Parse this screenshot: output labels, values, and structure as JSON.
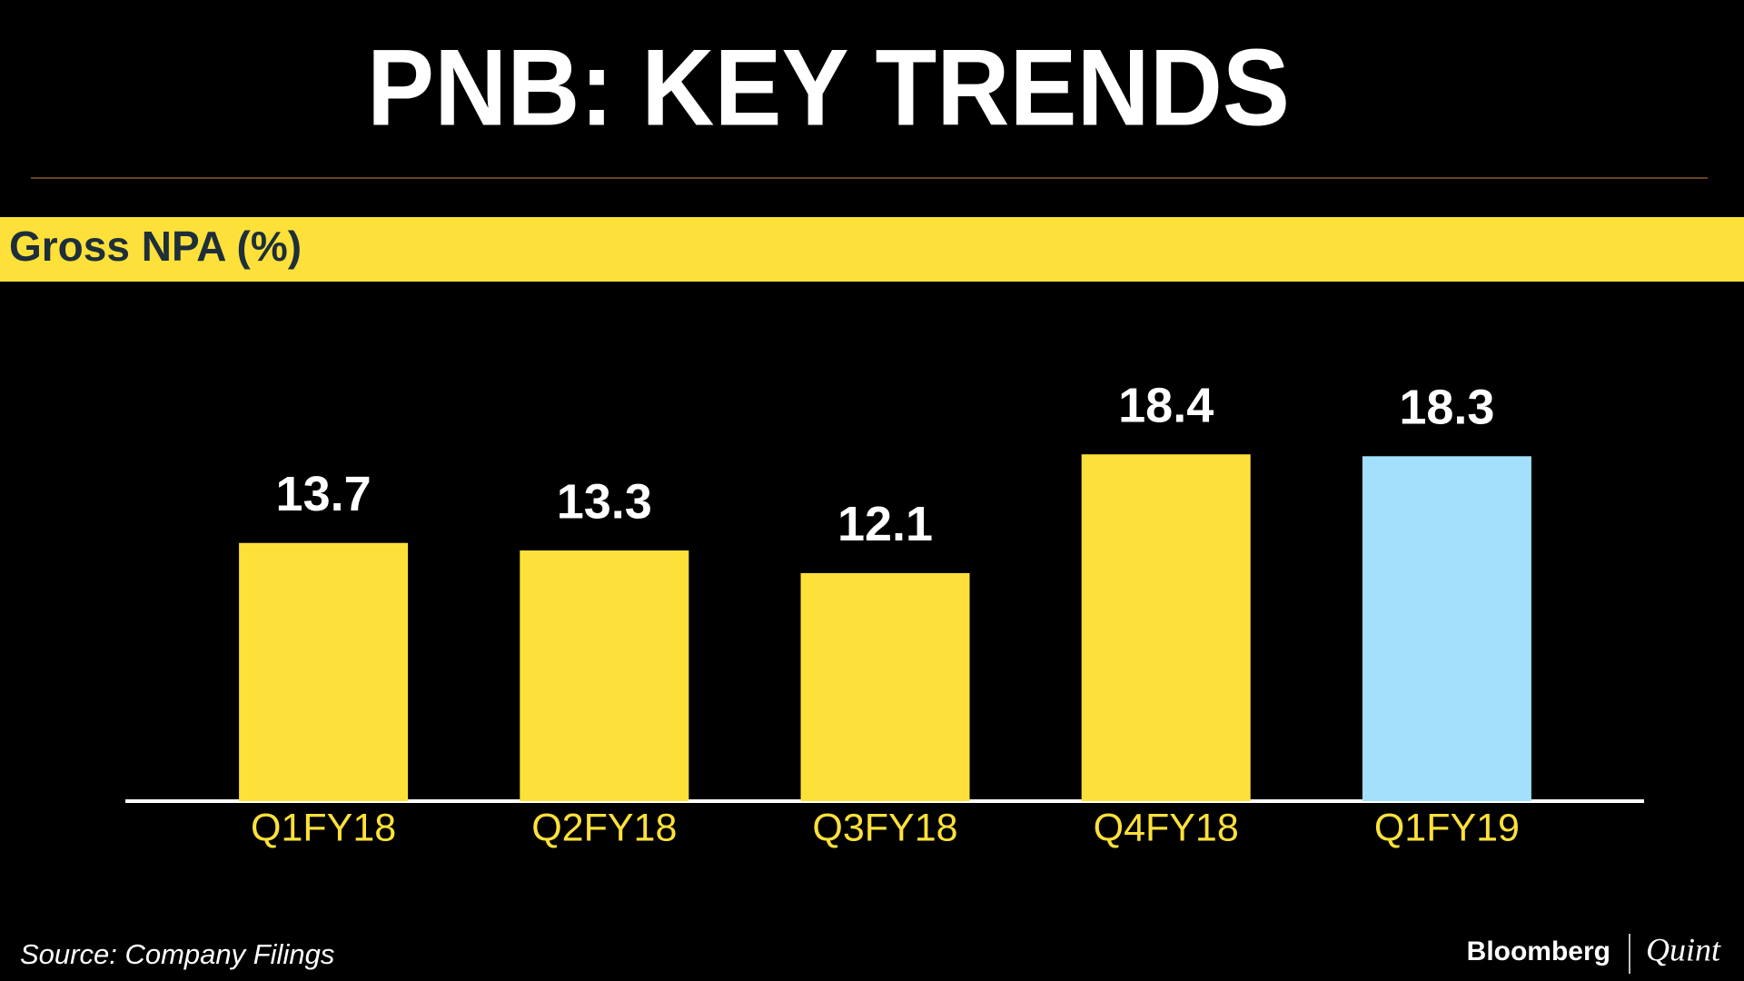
{
  "chart_data": {
    "type": "bar",
    "title": "PNB: KEY TRENDS",
    "subtitle": "Gross NPA (%)",
    "categories": [
      "Q1FY18",
      "Q2FY18",
      "Q3FY18",
      "Q4FY18",
      "Q1FY19"
    ],
    "values": [
      13.7,
      13.3,
      12.1,
      18.4,
      18.3
    ],
    "colors": [
      "#fde13a",
      "#fde13a",
      "#fde13a",
      "#fde13a",
      "#a3e0fb"
    ],
    "ylim": [
      0,
      20
    ],
    "source": "Source: Company Filings",
    "brand": [
      "Bloomberg",
      "Quint"
    ]
  }
}
